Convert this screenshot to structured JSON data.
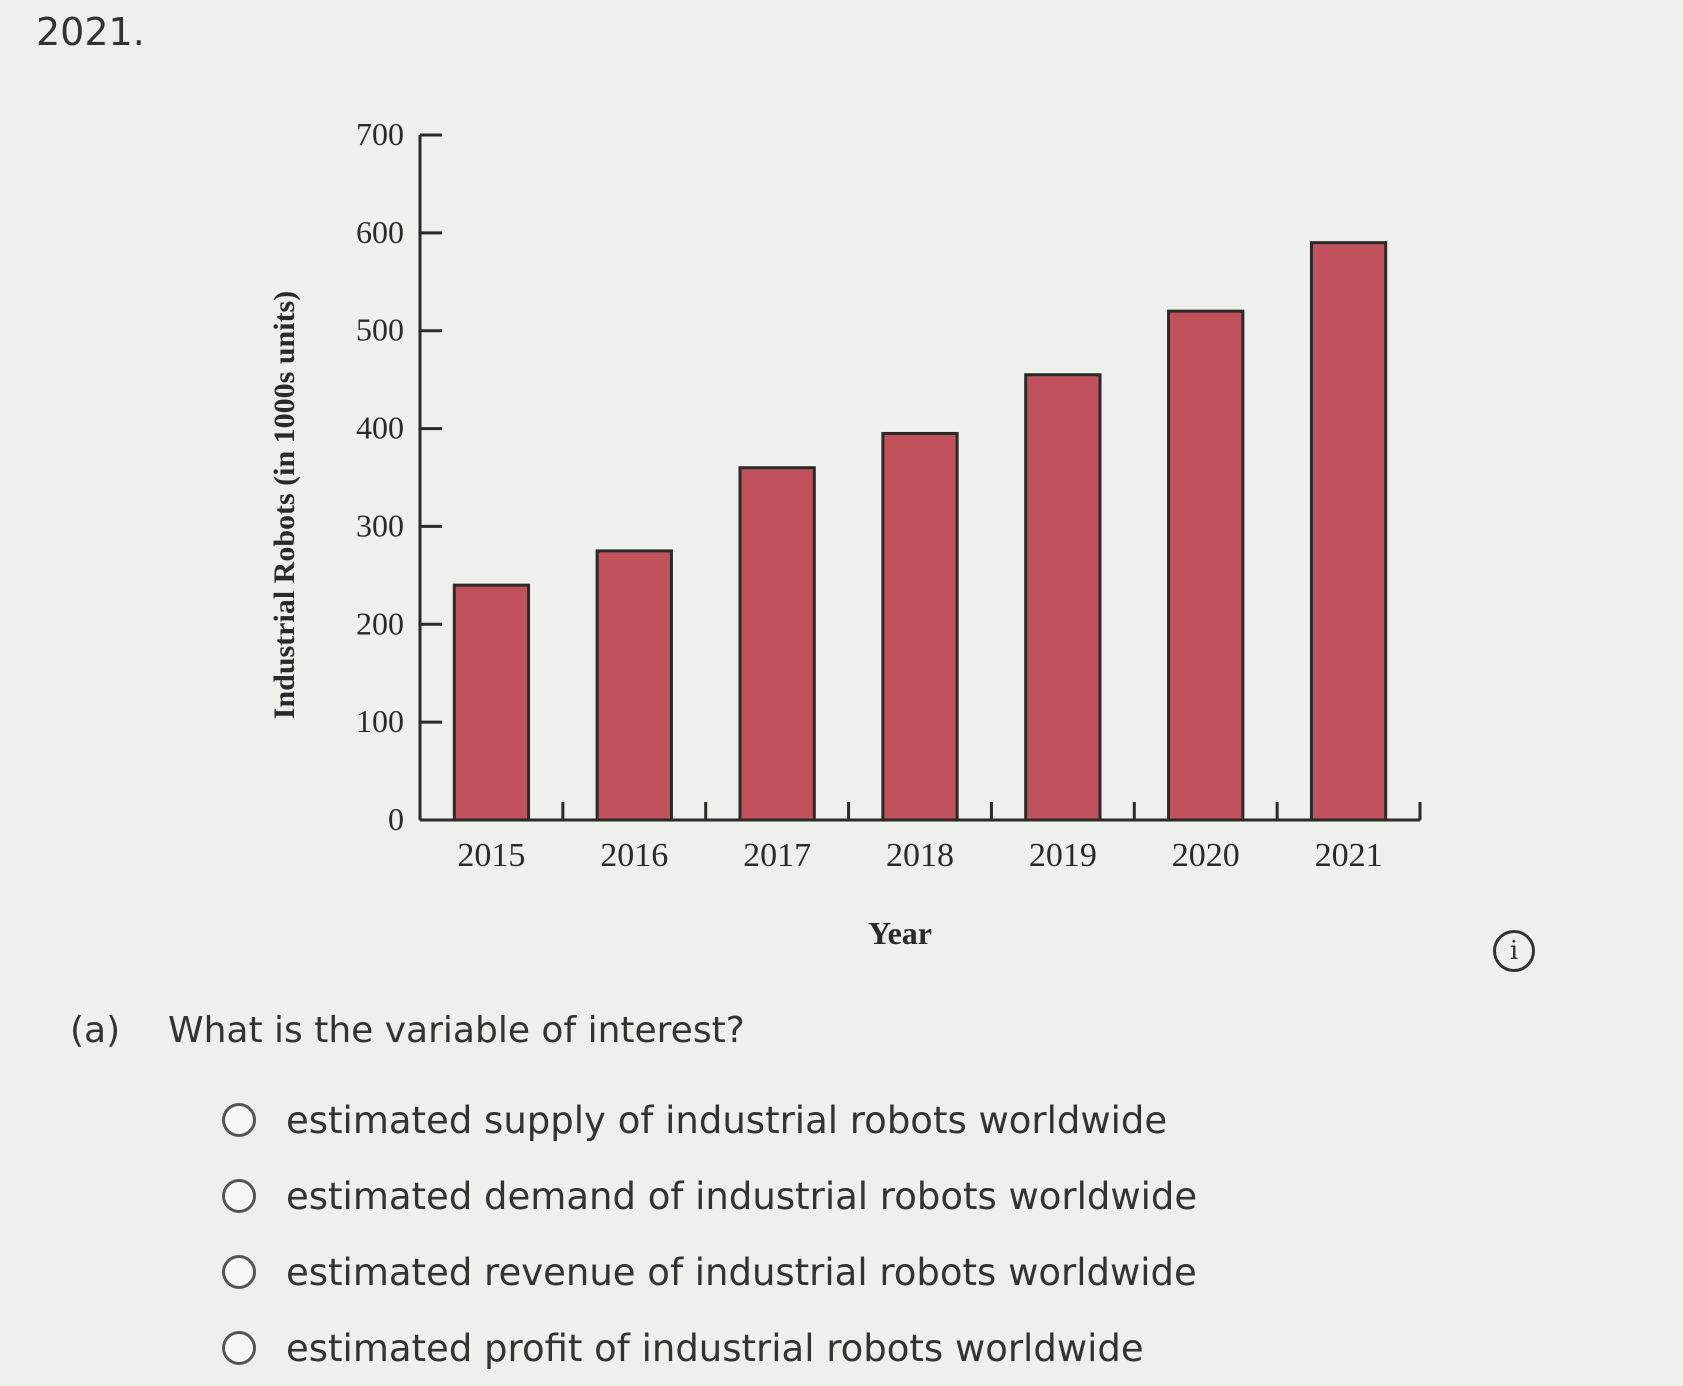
{
  "header": {
    "fragment_text": "2021."
  },
  "chart_data": {
    "type": "bar",
    "categories": [
      "2015",
      "2016",
      "2017",
      "2018",
      "2019",
      "2020",
      "2021"
    ],
    "values": [
      240,
      275,
      360,
      395,
      455,
      520,
      590
    ],
    "title": "",
    "xlabel": "Year",
    "ylabel": "Industrial Robots (in 1000s units)",
    "ylim": [
      0,
      700
    ],
    "yticks": [
      "0",
      "100",
      "200",
      "300",
      "400",
      "500",
      "600",
      "700"
    ],
    "bar_color": "#c1525b",
    "grid": false,
    "legend": "none"
  },
  "info": {
    "icon": "info-icon",
    "symbol": "i"
  },
  "question": {
    "part_label": "(a)",
    "text": "What is the variable of interest?",
    "options": [
      {
        "label": "estimated supply of industrial robots worldwide"
      },
      {
        "label": "estimated demand of industrial robots worldwide"
      },
      {
        "label": "estimated revenue of industrial robots worldwide"
      },
      {
        "label": "estimated profit of industrial robots worldwide"
      }
    ]
  }
}
